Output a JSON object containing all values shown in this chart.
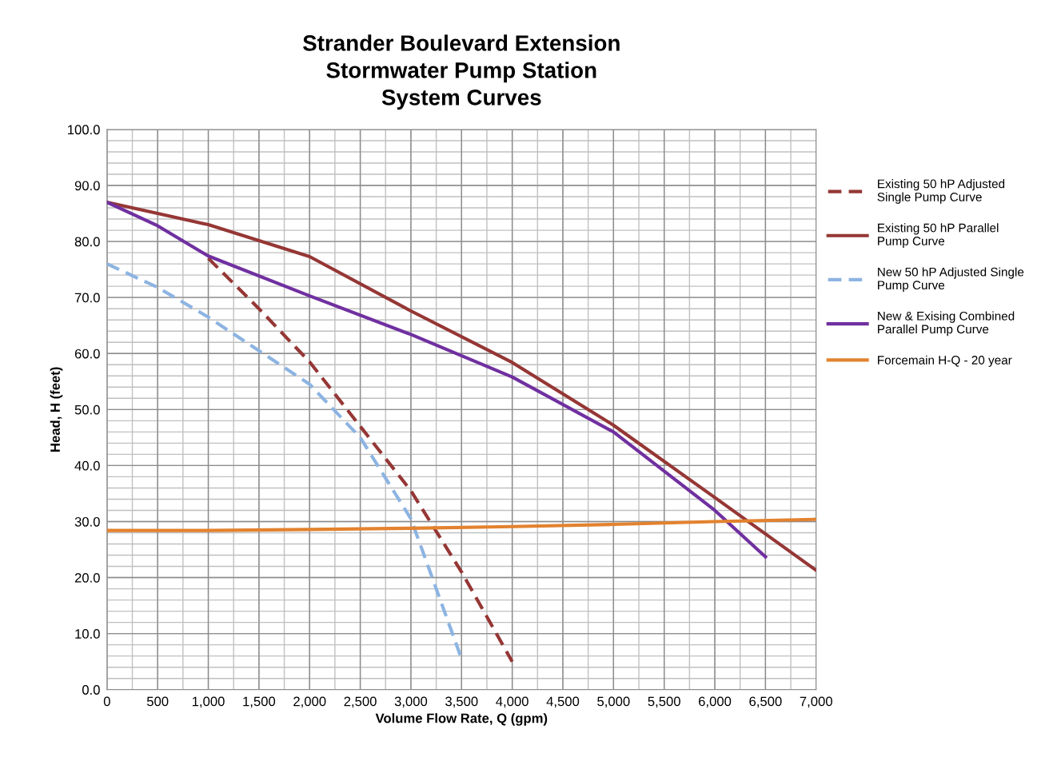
{
  "chart_data": {
    "type": "line",
    "title": "Strander Boulevard Extension\nStormwater Pump Station\nSystem Curves",
    "xlabel": "Volume Flow Rate, Q (gpm)",
    "ylabel": "Head, H (feet)",
    "xlim": [
      0,
      7000
    ],
    "ylim": [
      0,
      100
    ],
    "xticks": [
      0,
      {
        "value": 250,
        "label": null
      },
      500,
      {
        "value": 750,
        "label": null
      },
      {
        "value": 1000,
        "label": "1,000"
      },
      {
        "value": 1250,
        "label": null
      },
      {
        "value": 1500,
        "label": "1,500"
      },
      {
        "value": 1750,
        "label": null
      },
      {
        "value": 2000,
        "label": "2,000"
      },
      {
        "value": 2250,
        "label": null
      },
      {
        "value": 2500,
        "label": "2,500"
      },
      {
        "value": 2750,
        "label": null
      },
      {
        "value": 3000,
        "label": "3,000"
      },
      {
        "value": 3250,
        "label": null
      },
      {
        "value": 3500,
        "label": "3,500"
      },
      {
        "value": 3750,
        "label": null
      },
      {
        "value": 4000,
        "label": "4,000"
      },
      {
        "value": 4250,
        "label": null
      },
      {
        "value": 4500,
        "label": "4,500"
      },
      {
        "value": 4750,
        "label": null
      },
      {
        "value": 5000,
        "label": "5,000"
      },
      {
        "value": 5250,
        "label": null
      },
      {
        "value": 5500,
        "label": "5,500"
      },
      {
        "value": 5750,
        "label": null
      },
      {
        "value": 6000,
        "label": "6,000"
      },
      {
        "value": 6250,
        "label": null
      },
      {
        "value": 6500,
        "label": "6,500"
      },
      {
        "value": 6750,
        "label": null
      },
      {
        "value": 7000,
        "label": "7,000"
      }
    ],
    "yticks": [
      {
        "value": 0,
        "label": "0.0"
      },
      {
        "value": 2,
        "label": null
      },
      {
        "value": 4,
        "label": null
      },
      {
        "value": 6,
        "label": null
      },
      {
        "value": 8,
        "label": null
      },
      {
        "value": 10,
        "label": "10.0"
      },
      {
        "value": 12,
        "label": null
      },
      {
        "value": 14,
        "label": null
      },
      {
        "value": 16,
        "label": null
      },
      {
        "value": 18,
        "label": null
      },
      {
        "value": 20,
        "label": "20.0"
      },
      {
        "value": 22,
        "label": null
      },
      {
        "value": 24,
        "label": null
      },
      {
        "value": 26,
        "label": null
      },
      {
        "value": 28,
        "label": null
      },
      {
        "value": 30,
        "label": "30.0"
      },
      {
        "value": 32,
        "label": null
      },
      {
        "value": 34,
        "label": null
      },
      {
        "value": 36,
        "label": null
      },
      {
        "value": 38,
        "label": null
      },
      {
        "value": 40,
        "label": "40.0"
      },
      {
        "value": 42,
        "label": null
      },
      {
        "value": 44,
        "label": null
      },
      {
        "value": 46,
        "label": null
      },
      {
        "value": 48,
        "label": null
      },
      {
        "value": 50,
        "label": "50.0"
      },
      {
        "value": 52,
        "label": null
      },
      {
        "value": 54,
        "label": null
      },
      {
        "value": 56,
        "label": null
      },
      {
        "value": 58,
        "label": null
      },
      {
        "value": 60,
        "label": "60.0"
      },
      {
        "value": 62,
        "label": null
      },
      {
        "value": 64,
        "label": null
      },
      {
        "value": 66,
        "label": null
      },
      {
        "value": 68,
        "label": null
      },
      {
        "value": 70,
        "label": "70.0"
      },
      {
        "value": 72,
        "label": null
      },
      {
        "value": 74,
        "label": null
      },
      {
        "value": 76,
        "label": null
      },
      {
        "value": 78,
        "label": null
      },
      {
        "value": 80,
        "label": "80.0"
      },
      {
        "value": 82,
        "label": null
      },
      {
        "value": 84,
        "label": null
      },
      {
        "value": 86,
        "label": null
      },
      {
        "value": 88,
        "label": null
      },
      {
        "value": 90,
        "label": "90.0"
      },
      {
        "value": 92,
        "label": null
      },
      {
        "value": 94,
        "label": null
      },
      {
        "value": 96,
        "label": null
      },
      {
        "value": 98,
        "label": null
      },
      {
        "value": 100,
        "label": "100.0"
      }
    ],
    "grid": true,
    "legend": "right",
    "marker": "none",
    "series": [
      {
        "name": "Existing 50 hP Adjusted Single Pump Curve",
        "color": "#953735",
        "line_style": "dashed",
        "x": [
          1000,
          1500,
          2000,
          2500,
          3000,
          3500,
          4000
        ],
        "values": [
          77,
          68,
          58.5,
          47,
          35.5,
          21,
          5
        ]
      },
      {
        "name": "Existing 50 hP Parallel Pump Curve",
        "color": "#953735",
        "line_style": "solid",
        "x": [
          0,
          500,
          1000,
          2000,
          3000,
          4000,
          5000,
          6000,
          7000
        ],
        "values": [
          87,
          85,
          83,
          77.3,
          67.6,
          58.4,
          47.2,
          34.3,
          21.3
        ]
      },
      {
        "name": "New 50 hP Adjusted Single Pump Curve",
        "color": "#8db4e2",
        "line_style": "dashed",
        "x": [
          0,
          500,
          1000,
          1500,
          2000,
          2500,
          3000,
          3500
        ],
        "values": [
          76,
          71.8,
          66.5,
          60.5,
          54.5,
          45,
          30.5,
          5.5
        ]
      },
      {
        "name": "New & Exising Combined Parallel Pump Curve",
        "color": "#7030a0",
        "line_style": "solid",
        "x": [
          0,
          500,
          1000,
          2000,
          3000,
          4000,
          5000,
          6000,
          6500
        ],
        "values": [
          87,
          82.8,
          77.4,
          70.3,
          63.4,
          55.8,
          46,
          32,
          23.7
        ]
      },
      {
        "name": "Forcemain H-Q - 20 year",
        "color": "#e3822f",
        "line_style": "solid",
        "x": [
          0,
          1000,
          2000,
          3000,
          4000,
          5000,
          6000,
          7000
        ],
        "values": [
          28.4,
          28.4,
          28.6,
          28.8,
          29.1,
          29.5,
          30,
          30.4
        ]
      }
    ]
  }
}
